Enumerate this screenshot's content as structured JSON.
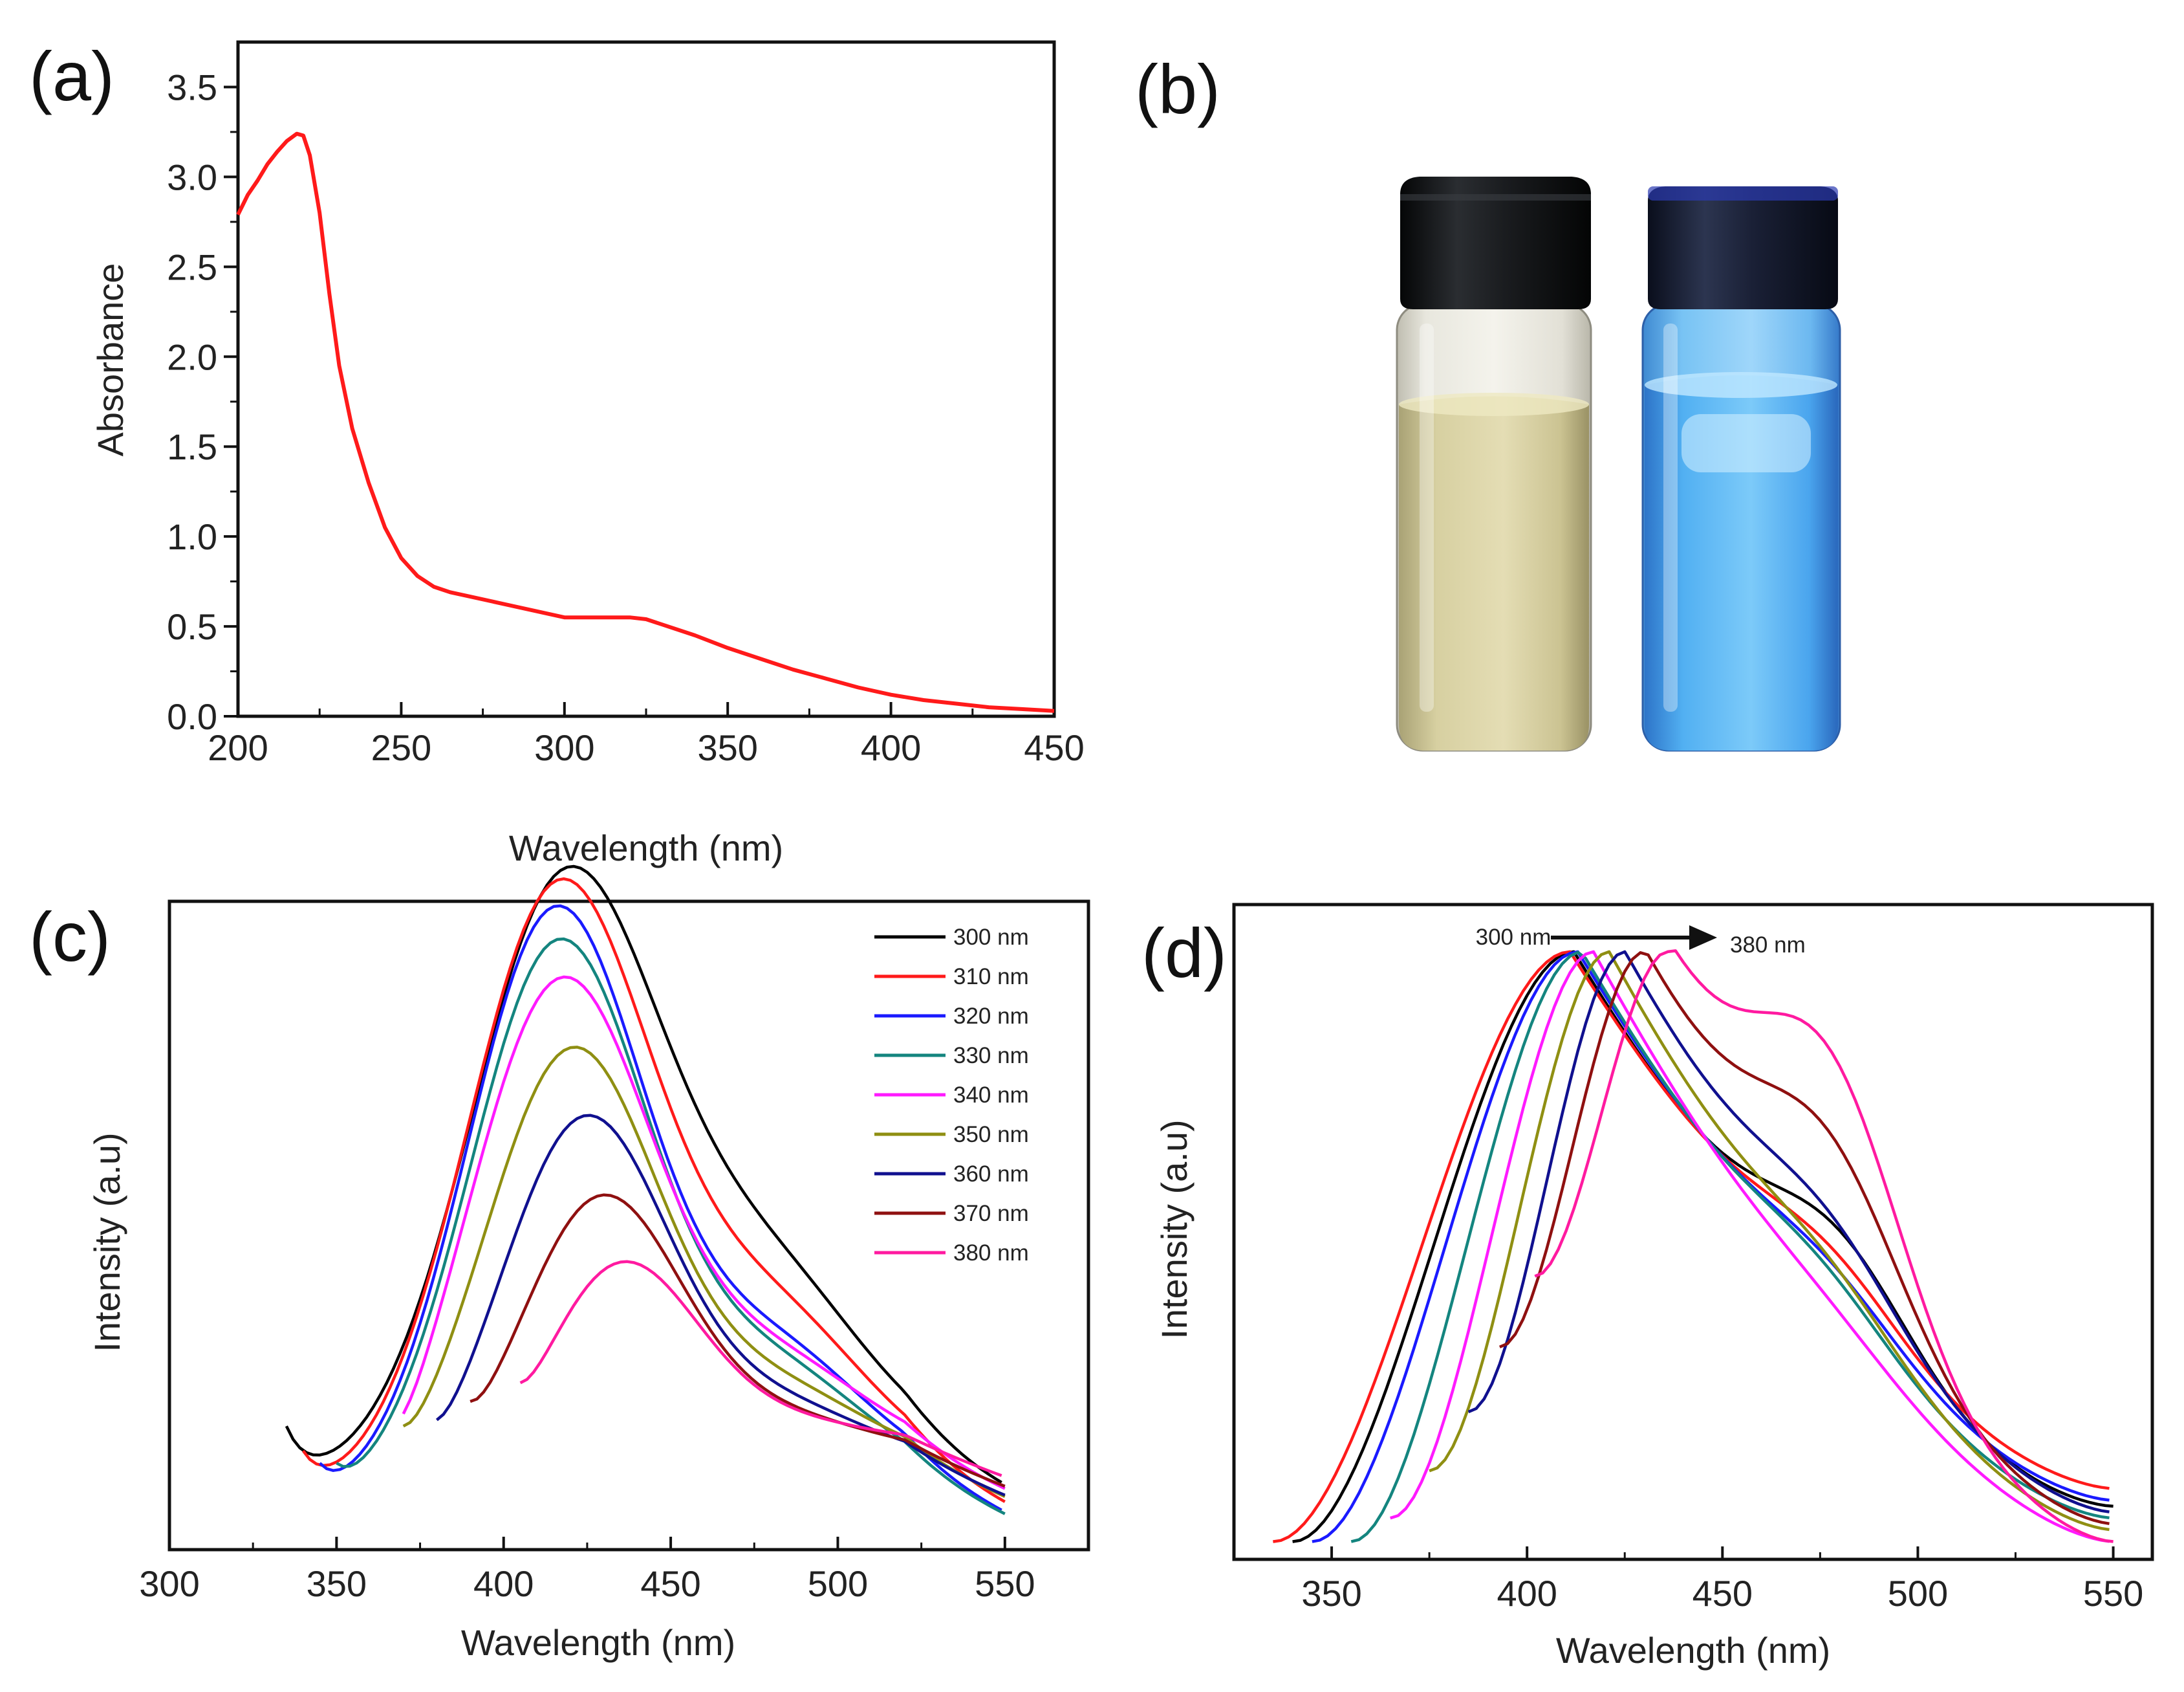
{
  "panels": {
    "a": {
      "label": "(a)"
    },
    "b": {
      "label": "(b)"
    },
    "c": {
      "label": "(c)"
    },
    "d": {
      "label": "(d)"
    }
  },
  "photo": {
    "left_vial": {
      "liquid": "pale yellow",
      "cap_color": "#15171a",
      "liquid_color": "#d9d3a4"
    },
    "right_vial": {
      "liquid": "blue fluorescent",
      "cap_color": "#1c2233",
      "liquid_color": "#58b9f4"
    }
  },
  "chart_data": [
    {
      "panel": "a",
      "type": "line",
      "title": "",
      "xlabel": "Wavelength (nm)",
      "ylabel": "Absorbance",
      "xlim": [
        200,
        450
      ],
      "ylim": [
        0,
        3.75
      ],
      "xticks": [
        "200",
        "250",
        "300",
        "350",
        "400",
        "450"
      ],
      "yticks": [
        "0.0",
        "0.5",
        "1.0",
        "1.5",
        "2.0",
        "2.5",
        "3.0",
        "3.5"
      ],
      "series": [
        {
          "name": "absorbance",
          "color": "#ff1a1a",
          "x": [
            200,
            203,
            206,
            209,
            212,
            215,
            218,
            220,
            222,
            225,
            228,
            231,
            235,
            240,
            245,
            250,
            255,
            260,
            265,
            270,
            280,
            290,
            300,
            310,
            320,
            325,
            330,
            340,
            350,
            360,
            370,
            380,
            390,
            400,
            410,
            420,
            430,
            440,
            450
          ],
          "y": [
            2.79,
            2.9,
            2.98,
            3.07,
            3.14,
            3.2,
            3.24,
            3.23,
            3.12,
            2.8,
            2.35,
            1.95,
            1.6,
            1.3,
            1.05,
            0.88,
            0.78,
            0.72,
            0.69,
            0.67,
            0.63,
            0.59,
            0.55,
            0.55,
            0.55,
            0.54,
            0.51,
            0.45,
            0.38,
            0.32,
            0.26,
            0.21,
            0.16,
            0.12,
            0.09,
            0.07,
            0.05,
            0.04,
            0.03
          ]
        }
      ]
    },
    {
      "panel": "c",
      "type": "line",
      "title": "",
      "xlabel": "Wavelength (nm)",
      "ylabel": "Intensity (a.u)",
      "xlim": [
        300,
        575
      ],
      "ylim": [
        0,
        1.05
      ],
      "xticks": [
        "300",
        "350",
        "400",
        "450",
        "500",
        "550"
      ],
      "legend_position": "top-right",
      "series": [
        {
          "name": "300 nm",
          "color": "#000000",
          "start": 335,
          "peak": 1.0,
          "baseline": 0.2,
          "center": 418,
          "width": 28,
          "shoulder": 0.44,
          "tail": 0.22
        },
        {
          "name": " 310 nm",
          "color": "#ff1a1a",
          "start": 340,
          "peak": 1.0,
          "baseline": 0.16,
          "center": 416,
          "width": 27,
          "shoulder": 0.4,
          "tail": 0.19
        },
        {
          "name": "320 nm",
          "color": "#1a1aff",
          "start": 345,
          "peak": 0.97,
          "baseline": 0.14,
          "center": 415,
          "width": 26,
          "shoulder": 0.35,
          "tail": 0.17
        },
        {
          "name": "330 nm",
          "color": "#14857f",
          "start": 350,
          "peak": 0.92,
          "baseline": 0.14,
          "center": 416,
          "width": 26,
          "shoulder": 0.32,
          "tail": 0.16
        },
        {
          "name": "340 nm",
          "color": "#ff1aff",
          "start": 370,
          "peak": 0.85,
          "baseline": 0.22,
          "center": 417,
          "width": 26,
          "shoulder": 0.3,
          "tail": 0.15
        },
        {
          "name": "350 nm",
          "color": "#8f8f12",
          "start": 370,
          "peak": 0.74,
          "baseline": 0.2,
          "center": 420,
          "width": 25,
          "shoulder": 0.28,
          "tail": 0.15
        },
        {
          "name": "360 nm",
          "color": "#10108f",
          "start": 380,
          "peak": 0.63,
          "baseline": 0.21,
          "center": 424,
          "width": 24,
          "shoulder": 0.26,
          "tail": 0.14
        },
        {
          "name": "370 nm",
          "color": "#8f1010",
          "start": 390,
          "peak": 0.5,
          "baseline": 0.24,
          "center": 429,
          "width": 23,
          "shoulder": 0.22,
          "tail": 0.14
        },
        {
          "name": "380 nm",
          "color": "#ff1aa0",
          "start": 405,
          "peak": 0.39,
          "baseline": 0.27,
          "center": 435,
          "width": 22,
          "shoulder": 0.2,
          "tail": 0.14
        }
      ]
    },
    {
      "panel": "d",
      "type": "line",
      "title": "",
      "xlabel": "Wavelength (nm)",
      "ylabel": "Intensity (a.u)",
      "xlim": [
        325,
        560
      ],
      "ylim": [
        -0.03,
        1.08
      ],
      "xticks": [
        "350",
        "400",
        "450",
        "500",
        "550"
      ],
      "annotation": {
        "from": "300 nm",
        "to": "380 nm"
      },
      "normalized": true,
      "series": [
        {
          "name": "300 nm",
          "color": "#000000",
          "start": 340,
          "start_y": 0.0,
          "peak_x": 412,
          "rise": 28,
          "shoulder": 0.5,
          "shoulder_x": 480,
          "end_y": 0.06
        },
        {
          "name": "310 nm",
          "color": "#ff1a1a",
          "start": 335,
          "start_y": 0.0,
          "peak_x": 411,
          "rise": 29,
          "shoulder": 0.44,
          "shoulder_x": 478,
          "end_y": 0.09
        },
        {
          "name": "320 nm",
          "color": "#1a1aff",
          "start": 345,
          "start_y": 0.0,
          "peak_x": 413,
          "rise": 27,
          "shoulder": 0.42,
          "shoulder_x": 478,
          "end_y": 0.07
        },
        {
          "name": "330 nm",
          "color": "#14857f",
          "start": 355,
          "start_y": 0.0,
          "peak_x": 414,
          "rise": 25,
          "shoulder": 0.42,
          "shoulder_x": 476,
          "end_y": 0.04
        },
        {
          "name": "340 nm",
          "color": "#ff1aff",
          "start": 365,
          "start_y": 0.04,
          "peak_x": 417,
          "rise": 24,
          "shoulder": 0.38,
          "shoulder_x": 478,
          "end_y": 0.0
        },
        {
          "name": "350 nm",
          "color": "#8f8f12",
          "start": 375,
          "start_y": 0.12,
          "peak_x": 421,
          "rise": 23,
          "shoulder": 0.42,
          "shoulder_x": 478,
          "end_y": 0.02
        },
        {
          "name": "360 nm",
          "color": "#10108f",
          "start": 385,
          "start_y": 0.22,
          "peak_x": 425,
          "rise": 21,
          "shoulder": 0.46,
          "shoulder_x": 478,
          "end_y": 0.05
        },
        {
          "name": "370 nm",
          "color": "#8f1010",
          "start": 393,
          "start_y": 0.33,
          "peak_x": 430,
          "rise": 19,
          "shoulder": 0.58,
          "shoulder_x": 478,
          "end_y": 0.03
        },
        {
          "name": "380 nm",
          "color": "#ff1aa0",
          "start": 402,
          "start_y": 0.45,
          "peak_x": 436,
          "rise": 17,
          "shoulder": 0.7,
          "shoulder_x": 478,
          "end_y": 0.0
        }
      ]
    }
  ]
}
